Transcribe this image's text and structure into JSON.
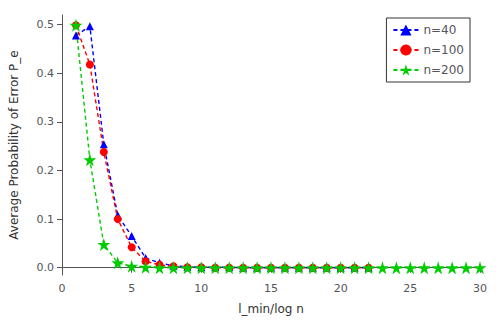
{
  "chart_data": {
    "type": "line",
    "xlabel": "l_min/log n",
    "ylabel": "Average Probability of Error P_e",
    "xlim": [
      0,
      30
    ],
    "ylim": [
      -0.015,
      0.52
    ],
    "xticks": [
      0,
      5,
      10,
      15,
      20,
      25,
      30
    ],
    "yticks": [
      {
        "value": 0,
        "label": "0.0"
      },
      0.1,
      0.2,
      0.3,
      0.4,
      0.5
    ],
    "grid": false,
    "legend": "upper right",
    "series": [
      {
        "name": "n=40",
        "color": "#0000FF",
        "marker": "triangle",
        "line_style": "dashed",
        "x": [
          1,
          2,
          3,
          4,
          5,
          6,
          7,
          8,
          9,
          10,
          11,
          12,
          13,
          14,
          15,
          16,
          17,
          18,
          19,
          20,
          21,
          22
        ],
        "values": [
          0.478,
          0.497,
          0.254,
          0.108,
          0.065,
          0.02,
          0.01,
          0.004,
          0.002,
          0.001,
          0.001,
          0.001,
          0.0,
          0.0,
          0.0,
          0.0,
          0.0,
          0.0,
          0.0,
          0.0,
          0.0,
          0.0
        ]
      },
      {
        "name": "n=100",
        "color": "#FF0000",
        "marker": "circle",
        "line_style": "dashed",
        "x": [
          1,
          2,
          3,
          4,
          5,
          6,
          7,
          8,
          9,
          10,
          11,
          12,
          13,
          14,
          15,
          16,
          17,
          18,
          19,
          20,
          21,
          22
        ],
        "values": [
          0.499,
          0.418,
          0.238,
          0.1,
          0.042,
          0.013,
          0.006,
          0.003,
          0.001,
          0.001,
          0.0,
          0.0,
          0.0,
          0.0,
          0.0,
          0.0,
          0.0,
          0.0,
          0.0,
          0.0,
          0.0,
          0.0
        ]
      },
      {
        "name": "n=200",
        "color": "#00CC00",
        "marker": "star",
        "line_style": "dashed",
        "x": [
          1,
          2,
          3,
          4,
          5,
          6,
          7,
          8,
          9,
          10,
          11,
          12,
          13,
          14,
          15,
          16,
          17,
          18,
          19,
          20,
          21,
          22,
          23,
          24,
          25,
          26,
          27,
          28,
          29,
          30
        ],
        "values": [
          0.499,
          0.222,
          0.048,
          0.01,
          0.003,
          0.001,
          0.0,
          0.0,
          0.0,
          0.0,
          0.0,
          0.0,
          0.0,
          0.0,
          0.0,
          0.0,
          0.0,
          0.0,
          0.0,
          0.0,
          0.0,
          0.0,
          0.0,
          0.0,
          0.0,
          0.0,
          0.0,
          0.0,
          0.0,
          0.0
        ]
      }
    ]
  }
}
